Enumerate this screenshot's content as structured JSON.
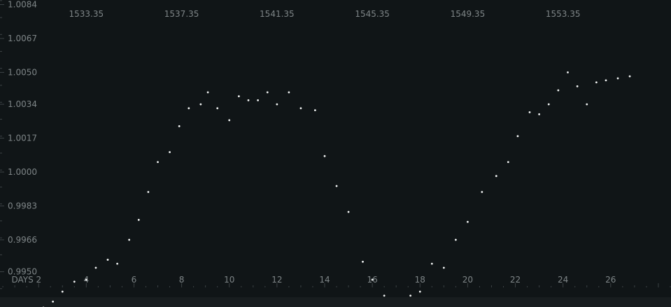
{
  "chart_data": {
    "type": "scatter",
    "title": "",
    "xlabel": "",
    "ylabel": "",
    "top_axis": {
      "range": [
        1529.73,
        1557.88
      ],
      "ticks": [
        "1533.35",
        "1537.35",
        "1541.35",
        "1545.35",
        "1549.35",
        "1553.35"
      ]
    },
    "bottom_axis": {
      "range": [
        0.38,
        28.53
      ],
      "ticks": [
        {
          "value": 2,
          "label": "DAYS 2"
        },
        {
          "value": 4,
          "label": "4"
        },
        {
          "value": 6,
          "label": "6"
        },
        {
          "value": 8,
          "label": "8"
        },
        {
          "value": 10,
          "label": "10"
        },
        {
          "value": 12,
          "label": "12"
        },
        {
          "value": 14,
          "label": "14"
        },
        {
          "value": 16,
          "label": "16"
        },
        {
          "value": 18,
          "label": "18"
        },
        {
          "value": 20,
          "label": "20"
        },
        {
          "value": 22,
          "label": "22"
        },
        {
          "value": 24,
          "label": "24"
        },
        {
          "value": 26,
          "label": "26"
        }
      ]
    },
    "y_axis": {
      "range": [
        0.99323,
        1.00863
      ],
      "ticks": [
        "1.0084",
        "1.0067",
        "1.0050",
        "1.0034",
        "1.0017",
        "1.0000",
        "0.9983",
        "0.9966",
        "0.9950"
      ]
    },
    "grid": false,
    "colors": {
      "background": "#101517",
      "points": "#f1f3f3",
      "text": "#7e8587"
    },
    "series": [
      {
        "x": [
          2.2,
          2.6,
          3.0,
          3.5,
          4.0,
          4.4,
          4.9,
          5.3,
          5.8,
          6.2,
          6.6,
          7.0,
          7.5,
          7.9,
          8.3,
          8.8,
          9.1,
          9.5,
          10.0,
          10.4,
          10.8,
          11.2,
          11.6,
          12.0,
          12.5,
          13.0,
          13.6,
          14.0,
          14.5,
          15.0,
          15.6,
          16.0,
          16.5,
          17.0,
          17.6,
          18.0,
          18.5,
          19.0,
          19.5,
          20.0,
          20.6,
          21.2,
          21.7,
          22.1,
          22.6,
          23.0,
          23.4,
          23.8,
          24.2,
          24.6,
          25.0,
          25.4,
          25.8,
          26.3,
          26.8
        ],
        "y": [
          0.9932,
          0.9935,
          0.994,
          0.9945,
          0.9946,
          0.9952,
          0.9956,
          0.9954,
          0.9966,
          0.9976,
          0.999,
          1.0005,
          1.001,
          1.0023,
          1.0032,
          1.0034,
          1.004,
          1.0032,
          1.0026,
          1.0038,
          1.0036,
          1.0036,
          1.004,
          1.0034,
          1.004,
          1.0032,
          1.0031,
          1.0008,
          0.9993,
          0.998,
          0.9955,
          0.9946,
          0.9938,
          0.993,
          0.9938,
          0.994,
          0.9954,
          0.9952,
          0.9966,
          0.9975,
          0.999,
          0.9998,
          1.0005,
          1.0018,
          1.003,
          1.0029,
          1.0034,
          1.0041,
          1.005,
          1.0043,
          1.0034,
          1.0045,
          1.0046,
          1.0047,
          1.0048
        ]
      }
    ]
  }
}
